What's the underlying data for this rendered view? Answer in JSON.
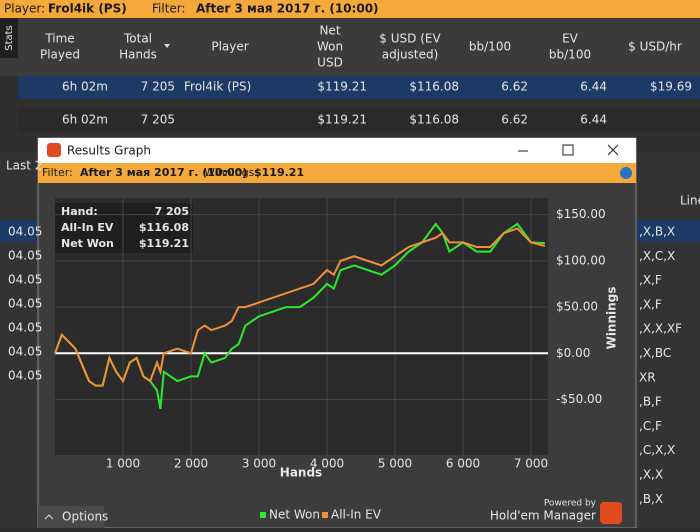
{
  "topbar": {
    "player_label": "Player:",
    "player": "Frol4ik (PS)",
    "filter_label": "Filter:",
    "filter": "After 3 мая 2017 г. (10:00)"
  },
  "stats_tab": "Stats",
  "table": {
    "columns": [
      [
        "Time",
        "Played"
      ],
      [
        "Total",
        "Hands"
      ],
      [
        "Player"
      ],
      [
        "Net",
        "Won",
        "USD"
      ],
      [
        "$ USD (EV",
        "adjusted)"
      ],
      [
        "bb/100"
      ],
      [
        "EV",
        "bb/100"
      ],
      [
        "$ USD/hr"
      ]
    ],
    "rows": [
      [
        "6h 02m",
        "7 205",
        "Frol4ik (PS)",
        "$119.21",
        "$116.08",
        "6.62",
        "6.44",
        "$19.69"
      ],
      [
        "6h 02m",
        "7 205",
        "",
        "$119.21",
        "$116.08",
        "6.62",
        "6.44",
        ""
      ]
    ]
  },
  "background": {
    "tab": "Last 2",
    "right_header": "Line",
    "dates": [
      "04.05",
      "04.05",
      "04.05",
      "04.05",
      "04.05",
      "04.05",
      "04.05"
    ],
    "actions": [
      ",X,B,X",
      ",X,C,X",
      ",X,F",
      ",X,F",
      ",X,X,XF",
      ",X,BC",
      "XR",
      ",B,F",
      ",C,F",
      ",C,X,X",
      ",X,X",
      ",B,X"
    ]
  },
  "window": {
    "title": "Results Graph",
    "filter_label": "Filter:",
    "filter": "After 3 мая 2017 г. (10:00)",
    "winnings_label": "Winnings:",
    "winnings": "$119.21",
    "options": "Options",
    "powered_by": "Powered by",
    "brand": "Hold'em Manager"
  },
  "chart_data": {
    "type": "line",
    "xlabel": "Hands",
    "ylabel": "Winnings",
    "tooltip": {
      "hand_label": "Hand:",
      "hand": "7 205",
      "ev_label": "All-In EV",
      "ev": "$116.08",
      "net_label": "Net Won",
      "net": "$119.21"
    },
    "x": [
      0,
      100,
      300,
      500,
      600,
      700,
      800,
      900,
      1000,
      1100,
      1200,
      1300,
      1400,
      1500,
      1550,
      1600,
      1800,
      2000,
      2100,
      2200,
      2300,
      2500,
      2600,
      2700,
      2800,
      3000,
      3200,
      3400,
      3600,
      3800,
      4000,
      4100,
      4200,
      4400,
      4600,
      4800,
      5000,
      5200,
      5400,
      5600,
      5700,
      5800,
      6000,
      6200,
      6400,
      6600,
      6800,
      7000,
      7205
    ],
    "series": [
      {
        "name": "Net Won",
        "color": "#2ee82e",
        "values": [
          0,
          20,
          5,
          -30,
          -35,
          -35,
          -5,
          -20,
          -30,
          -10,
          -5,
          -25,
          -30,
          -40,
          -60,
          -20,
          -30,
          -25,
          -25,
          0,
          -10,
          -5,
          5,
          10,
          30,
          40,
          45,
          50,
          50,
          60,
          75,
          70,
          90,
          95,
          90,
          85,
          95,
          110,
          120,
          140,
          130,
          110,
          120,
          110,
          110,
          130,
          140,
          120,
          119.21
        ]
      },
      {
        "name": "All-In EV",
        "color": "#f0903a",
        "values": [
          0,
          20,
          5,
          -30,
          -35,
          -35,
          -5,
          -20,
          -30,
          -10,
          -5,
          -25,
          -30,
          -10,
          -20,
          0,
          5,
          0,
          25,
          30,
          25,
          30,
          35,
          50,
          50,
          55,
          60,
          65,
          70,
          75,
          90,
          85,
          100,
          105,
          100,
          95,
          105,
          115,
          120,
          125,
          130,
          120,
          120,
          115,
          115,
          130,
          135,
          120,
          116.08
        ]
      }
    ],
    "xlim": [
      0,
      7250
    ],
    "ylim": [
      -110,
      168
    ],
    "xticks": [
      {
        "value": 1000,
        "label": "1 000"
      },
      {
        "value": 2000,
        "label": "2 000"
      },
      {
        "value": 3000,
        "label": "3 000"
      },
      {
        "value": 4000,
        "label": "4 000"
      },
      {
        "value": 5000,
        "label": "5 000"
      },
      {
        "value": 6000,
        "label": "6 000"
      },
      {
        "value": 7000,
        "label": "7 000"
      }
    ],
    "yticks": [
      {
        "value": -50,
        "label": "-$50.00"
      },
      {
        "value": 0,
        "label": "$0.00"
      },
      {
        "value": 50,
        "label": "$50.00"
      },
      {
        "value": 100,
        "label": "$100.00"
      },
      {
        "value": 150,
        "label": "$150.00"
      }
    ],
    "grid": true
  }
}
